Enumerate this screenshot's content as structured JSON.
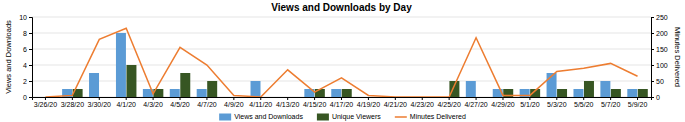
{
  "chart_data": {
    "type": "bar",
    "title": "Views and Downloads by Day",
    "categories": [
      "3/26/20",
      "3/28/20",
      "3/30/20",
      "4/1/20",
      "4/3/20",
      "4/5/20",
      "4/7/20",
      "4/9/20",
      "4/11/20",
      "4/13/20",
      "4/15/20",
      "4/17/20",
      "4/19/20",
      "4/21/20",
      "4/23/20",
      "4/25/20",
      "4/27/20",
      "4/29/20",
      "5/1/20",
      "5/3/20",
      "5/5/20",
      "5/7/20",
      "5/9/20"
    ],
    "series": [
      {
        "name": "Views and Downloads",
        "type": "bar",
        "color": "#5b9bd5",
        "values": [
          0,
          1,
          3,
          8,
          1,
          1,
          1,
          0,
          2,
          0,
          1,
          1,
          0,
          0,
          0,
          0,
          2,
          1,
          1,
          3,
          1,
          2,
          1
        ]
      },
      {
        "name": "Unique Viewers",
        "type": "bar",
        "color": "#375623",
        "values": [
          0,
          1,
          0,
          4,
          1,
          3,
          2,
          0,
          0,
          0,
          1,
          1,
          0,
          0,
          0,
          2,
          0,
          1,
          1,
          1,
          2,
          1,
          1
        ]
      },
      {
        "name": "Minutes Delivered",
        "type": "line",
        "axis": "y2",
        "color": "#ed7d31",
        "values": [
          0,
          5,
          180,
          215,
          10,
          155,
          100,
          5,
          0,
          85,
          15,
          60,
          5,
          0,
          0,
          0,
          185,
          5,
          5,
          80,
          90,
          105,
          65
        ]
      }
    ],
    "ylabel": "Views and Downloads",
    "y2label": "Minutes Delivered",
    "ylim": [
      0,
      10
    ],
    "yticks": [
      0,
      2,
      4,
      6,
      8,
      10
    ],
    "y2lim": [
      0,
      250
    ],
    "y2ticks": [
      0,
      50,
      100,
      150,
      200,
      250
    ],
    "grid": true,
    "legend": "bottom"
  }
}
